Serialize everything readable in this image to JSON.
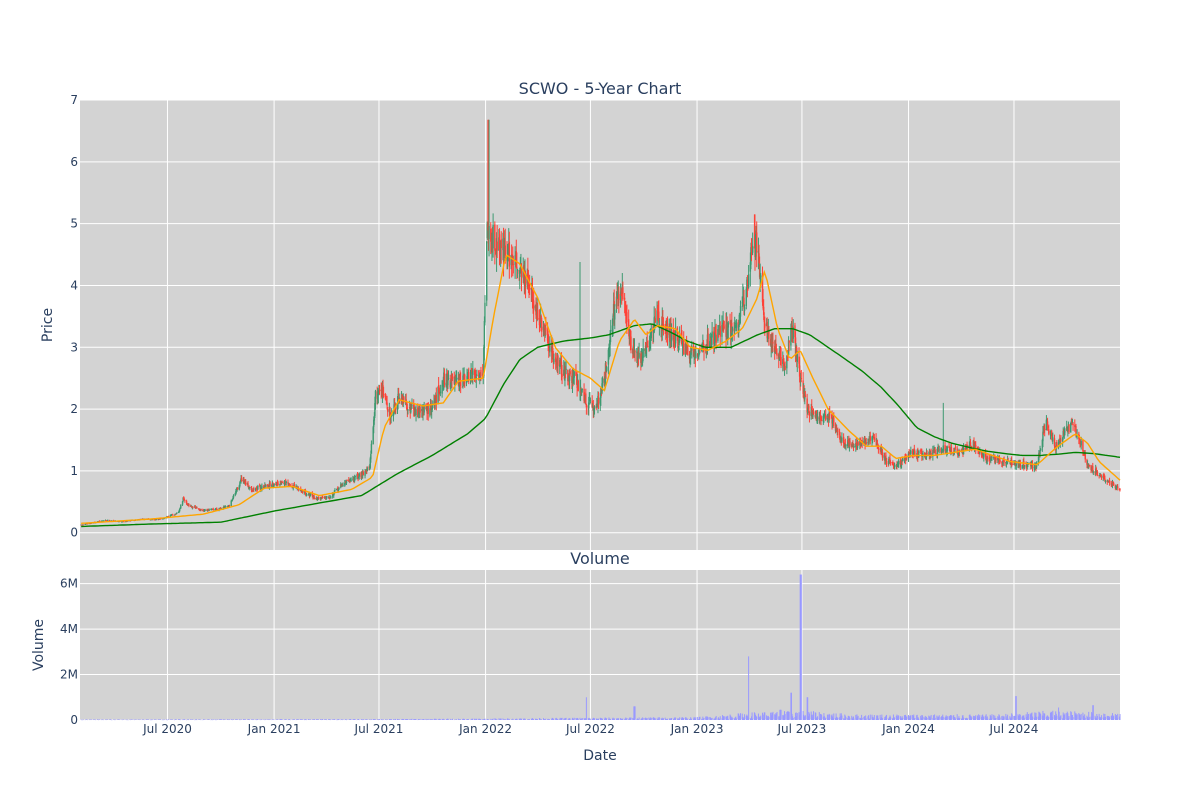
{
  "chart_data": [
    {
      "type": "candlestick",
      "title": "SCWO - 5-Year Chart",
      "ylabel": "Price",
      "xlabel": "",
      "x_range": [
        "2020-02-01",
        "2024-12-31"
      ],
      "ylim": [
        -0.28,
        7.0
      ],
      "y_ticks": [
        0,
        1,
        2,
        3,
        4,
        5,
        6,
        7
      ],
      "grid": true,
      "legend": "none",
      "colors": {
        "up": "#3d9970",
        "down": "#ff4136",
        "ma_short": "#ffa500",
        "ma_long": "#008000",
        "plot_bg": "#d3d3d3"
      },
      "close_anchors": [
        [
          "2020-02-01",
          0.12
        ],
        [
          "2020-03-15",
          0.2
        ],
        [
          "2020-04-15",
          0.18
        ],
        [
          "2020-05-15",
          0.22
        ],
        [
          "2020-06-15",
          0.21
        ],
        [
          "2020-07-20",
          0.32
        ],
        [
          "2020-07-28",
          0.55
        ],
        [
          "2020-08-05",
          0.45
        ],
        [
          "2020-09-01",
          0.35
        ],
        [
          "2020-10-15",
          0.42
        ],
        [
          "2020-11-05",
          0.85
        ],
        [
          "2020-11-25",
          0.7
        ],
        [
          "2020-12-15",
          0.75
        ],
        [
          "2021-01-15",
          0.82
        ],
        [
          "2021-02-15",
          0.7
        ],
        [
          "2021-03-15",
          0.55
        ],
        [
          "2021-04-10",
          0.6
        ],
        [
          "2021-05-01",
          0.8
        ],
        [
          "2021-05-25",
          0.9
        ],
        [
          "2021-06-15",
          1.05
        ],
        [
          "2021-06-25",
          2.2
        ],
        [
          "2021-07-05",
          2.35
        ],
        [
          "2021-07-20",
          1.9
        ],
        [
          "2021-08-05",
          2.2
        ],
        [
          "2021-09-01",
          1.95
        ],
        [
          "2021-10-01",
          2.0
        ],
        [
          "2021-10-20",
          2.5
        ],
        [
          "2021-11-15",
          2.4
        ],
        [
          "2021-12-10",
          2.55
        ],
        [
          "2021-12-28",
          2.6
        ],
        [
          "2022-01-03",
          4.9
        ],
        [
          "2022-01-20",
          4.7
        ],
        [
          "2022-02-10",
          4.5
        ],
        [
          "2022-03-01",
          4.3
        ],
        [
          "2022-03-20",
          3.9
        ],
        [
          "2022-04-05",
          3.4
        ],
        [
          "2022-04-25",
          2.9
        ],
        [
          "2022-05-15",
          2.6
        ],
        [
          "2022-06-05",
          2.5
        ],
        [
          "2022-06-25",
          2.1
        ],
        [
          "2022-07-10",
          2.0
        ],
        [
          "2022-07-25",
          2.5
        ],
        [
          "2022-08-10",
          3.6
        ],
        [
          "2022-08-25",
          3.9
        ],
        [
          "2022-09-10",
          3.0
        ],
        [
          "2022-09-25",
          2.8
        ],
        [
          "2022-10-10",
          3.1
        ],
        [
          "2022-10-25",
          3.5
        ],
        [
          "2022-11-10",
          3.3
        ],
        [
          "2022-12-01",
          3.1
        ],
        [
          "2022-12-20",
          2.9
        ],
        [
          "2023-01-10",
          3.0
        ],
        [
          "2023-02-01",
          3.2
        ],
        [
          "2023-02-20",
          3.3
        ],
        [
          "2023-03-10",
          3.3
        ],
        [
          "2023-03-25",
          3.8
        ],
        [
          "2023-04-05",
          4.6
        ],
        [
          "2023-04-15",
          4.7
        ],
        [
          "2023-04-28",
          3.4
        ],
        [
          "2023-05-15",
          2.9
        ],
        [
          "2023-06-01",
          2.7
        ],
        [
          "2023-06-15",
          3.3
        ],
        [
          "2023-06-28",
          2.5
        ],
        [
          "2023-07-10",
          2.0
        ],
        [
          "2023-08-01",
          1.85
        ],
        [
          "2023-08-20",
          1.9
        ],
        [
          "2023-09-05",
          1.5
        ],
        [
          "2023-09-25",
          1.4
        ],
        [
          "2023-10-15",
          1.45
        ],
        [
          "2023-11-01",
          1.55
        ],
        [
          "2023-11-20",
          1.2
        ],
        [
          "2023-12-05",
          1.1
        ],
        [
          "2023-12-20",
          1.15
        ],
        [
          "2024-01-05",
          1.3
        ],
        [
          "2024-02-01",
          1.25
        ],
        [
          "2024-03-01",
          1.35
        ],
        [
          "2024-04-01",
          1.3
        ],
        [
          "2024-04-20",
          1.45
        ],
        [
          "2024-05-15",
          1.2
        ],
        [
          "2024-06-15",
          1.15
        ],
        [
          "2024-07-15",
          1.1
        ],
        [
          "2024-08-10",
          1.1
        ],
        [
          "2024-08-25",
          1.8
        ],
        [
          "2024-09-10",
          1.4
        ],
        [
          "2024-09-25",
          1.6
        ],
        [
          "2024-10-10",
          1.75
        ],
        [
          "2024-10-25",
          1.45
        ],
        [
          "2024-11-05",
          1.1
        ],
        [
          "2024-11-25",
          0.95
        ],
        [
          "2024-12-10",
          0.82
        ],
        [
          "2024-12-31",
          0.7
        ]
      ],
      "spikes": [
        [
          "2022-01-06",
          6.68
        ],
        [
          "2022-06-12",
          4.38
        ],
        [
          "2023-04-10",
          5.15
        ],
        [
          "2024-03-02",
          2.1
        ]
      ],
      "ma_short_anchors": [
        [
          "2020-02-01",
          0.15
        ],
        [
          "2020-06-01",
          0.22
        ],
        [
          "2020-09-01",
          0.3
        ],
        [
          "2020-11-01",
          0.45
        ],
        [
          "2020-12-15",
          0.72
        ],
        [
          "2021-02-01",
          0.75
        ],
        [
          "2021-03-20",
          0.6
        ],
        [
          "2021-05-15",
          0.7
        ],
        [
          "2021-06-20",
          0.9
        ],
        [
          "2021-07-10",
          1.7
        ],
        [
          "2021-08-05",
          2.15
        ],
        [
          "2021-09-15",
          2.05
        ],
        [
          "2021-10-20",
          2.1
        ],
        [
          "2021-11-15",
          2.45
        ],
        [
          "2021-12-28",
          2.5
        ],
        [
          "2022-01-15",
          3.5
        ],
        [
          "2022-02-05",
          4.5
        ],
        [
          "2022-03-01",
          4.35
        ],
        [
          "2022-04-01",
          3.8
        ],
        [
          "2022-05-01",
          3.0
        ],
        [
          "2022-06-01",
          2.65
        ],
        [
          "2022-07-01",
          2.5
        ],
        [
          "2022-07-25",
          2.3
        ],
        [
          "2022-08-20",
          3.1
        ],
        [
          "2022-09-15",
          3.45
        ],
        [
          "2022-10-05",
          3.2
        ],
        [
          "2022-10-25",
          3.35
        ],
        [
          "2022-11-25",
          3.3
        ],
        [
          "2022-12-20",
          3.0
        ],
        [
          "2023-01-20",
          2.95
        ],
        [
          "2023-02-20",
          3.1
        ],
        [
          "2023-03-20",
          3.3
        ],
        [
          "2023-04-15",
          3.8
        ],
        [
          "2023-04-28",
          4.25
        ],
        [
          "2023-05-20",
          3.3
        ],
        [
          "2023-06-10",
          2.8
        ],
        [
          "2023-06-28",
          2.95
        ],
        [
          "2023-07-20",
          2.5
        ],
        [
          "2023-08-15",
          2.0
        ],
        [
          "2023-09-20",
          1.65
        ],
        [
          "2023-10-20",
          1.4
        ],
        [
          "2023-11-15",
          1.4
        ],
        [
          "2023-12-10",
          1.2
        ],
        [
          "2024-01-10",
          1.25
        ],
        [
          "2024-02-15",
          1.25
        ],
        [
          "2024-03-20",
          1.3
        ],
        [
          "2024-04-25",
          1.35
        ],
        [
          "2024-05-25",
          1.25
        ],
        [
          "2024-06-25",
          1.15
        ],
        [
          "2024-08-10",
          1.1
        ],
        [
          "2024-09-15",
          1.4
        ],
        [
          "2024-10-15",
          1.6
        ],
        [
          "2024-11-05",
          1.45
        ],
        [
          "2024-11-25",
          1.15
        ],
        [
          "2024-12-31",
          0.85
        ]
      ],
      "ma_long_anchors": [
        [
          "2020-02-01",
          0.1
        ],
        [
          "2020-06-01",
          0.14
        ],
        [
          "2020-10-01",
          0.17
        ],
        [
          "2021-01-01",
          0.35
        ],
        [
          "2021-04-01",
          0.5
        ],
        [
          "2021-06-01",
          0.6
        ],
        [
          "2021-08-01",
          0.95
        ],
        [
          "2021-10-01",
          1.25
        ],
        [
          "2021-12-01",
          1.6
        ],
        [
          "2022-01-01",
          1.85
        ],
        [
          "2022-02-01",
          2.4
        ],
        [
          "2022-03-01",
          2.8
        ],
        [
          "2022-04-01",
          3.0
        ],
        [
          "2022-05-15",
          3.1
        ],
        [
          "2022-07-01",
          3.15
        ],
        [
          "2022-08-01",
          3.2
        ],
        [
          "2022-09-15",
          3.35
        ],
        [
          "2022-10-15",
          3.38
        ],
        [
          "2022-11-15",
          3.25
        ],
        [
          "2022-12-15",
          3.1
        ],
        [
          "2023-01-15",
          3.0
        ],
        [
          "2023-03-01",
          3.0
        ],
        [
          "2023-04-15",
          3.2
        ],
        [
          "2023-05-15",
          3.3
        ],
        [
          "2023-06-15",
          3.3
        ],
        [
          "2023-07-15",
          3.2
        ],
        [
          "2023-08-15",
          3.0
        ],
        [
          "2023-09-15",
          2.8
        ],
        [
          "2023-10-15",
          2.6
        ],
        [
          "2023-11-15",
          2.35
        ],
        [
          "2023-12-15",
          2.05
        ],
        [
          "2024-01-15",
          1.7
        ],
        [
          "2024-02-15",
          1.55
        ],
        [
          "2024-03-15",
          1.45
        ],
        [
          "2024-04-15",
          1.38
        ],
        [
          "2024-05-15",
          1.32
        ],
        [
          "2024-06-15",
          1.28
        ],
        [
          "2024-07-15",
          1.25
        ],
        [
          "2024-08-15",
          1.25
        ],
        [
          "2024-09-15",
          1.27
        ],
        [
          "2024-10-15",
          1.3
        ],
        [
          "2024-11-15",
          1.28
        ],
        [
          "2024-12-31",
          1.22
        ]
      ]
    },
    {
      "type": "bar",
      "title": "Volume",
      "ylabel": "Volume",
      "xlabel": "Date",
      "x_range": [
        "2020-02-01",
        "2024-12-31"
      ],
      "ylim": [
        0,
        6600000
      ],
      "y_ticks": [
        0,
        2000000,
        4000000,
        6000000
      ],
      "y_tick_labels": [
        "0",
        "2M",
        "4M",
        "6M"
      ],
      "x_ticks": [
        "2020-07-01",
        "2021-01-01",
        "2021-07-01",
        "2022-01-01",
        "2022-07-01",
        "2023-01-01",
        "2023-07-01",
        "2024-01-01",
        "2024-07-01"
      ],
      "x_tick_labels": [
        "Jul 2020",
        "Jan 2021",
        "Jul 2021",
        "Jan 2022",
        "Jul 2022",
        "Jan 2023",
        "Jul 2023",
        "Jan 2024",
        "Jul 2024"
      ],
      "grid": true,
      "color": "#9999ff",
      "volume_levels": [
        [
          "2020-02-01",
          15000
        ],
        [
          "2021-06-01",
          25000
        ],
        [
          "2022-01-01",
          40000
        ],
        [
          "2022-06-01",
          60000
        ],
        [
          "2023-01-01",
          80000
        ],
        [
          "2023-04-01",
          200000
        ],
        [
          "2023-07-01",
          250000
        ],
        [
          "2023-10-01",
          150000
        ],
        [
          "2024-06-01",
          150000
        ],
        [
          "2024-09-01",
          250000
        ],
        [
          "2024-12-31",
          200000
        ]
      ],
      "volume_spikes": [
        [
          "2022-06-25",
          1000000
        ],
        [
          "2022-09-15",
          600000
        ],
        [
          "2023-04-01",
          2800000
        ],
        [
          "2023-05-25",
          450000
        ],
        [
          "2023-06-12",
          1200000
        ],
        [
          "2023-06-29",
          6400000
        ],
        [
          "2023-07-10",
          1000000
        ],
        [
          "2024-07-05",
          1050000
        ],
        [
          "2024-09-15",
          550000
        ],
        [
          "2024-11-15",
          650000
        ]
      ]
    }
  ]
}
